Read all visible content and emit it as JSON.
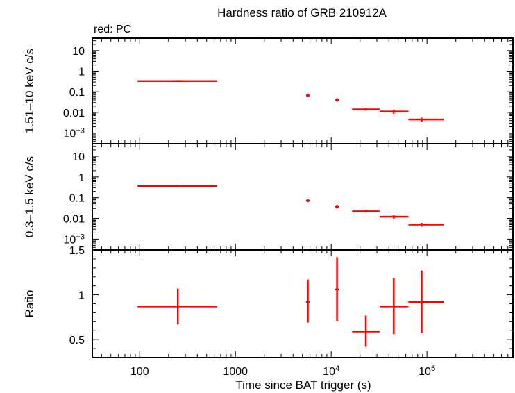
{
  "title": "Hardness ratio of GRB 210912A",
  "subtitle": "red: PC",
  "xlabel": "Time since BAT trigger (s)",
  "colors": {
    "series": "#ff0000",
    "axes": "#000000"
  },
  "x_tick_labels": [
    {
      "value": 100,
      "label": "100",
      "sup": ""
    },
    {
      "value": 1000,
      "label": "1000",
      "sup": ""
    },
    {
      "value": 10000,
      "label": "10",
      "sup": "4"
    },
    {
      "value": 100000,
      "label": "10",
      "sup": "5"
    }
  ],
  "chart_data": [
    {
      "type": "scatter",
      "panel": "hard",
      "ylabel": "1.51–10 keV c/s",
      "yscale": "log",
      "ylim": [
        0.0003,
        40
      ],
      "xscale": "log",
      "xlim": [
        32,
        790000
      ],
      "y_ticks": [
        {
          "value": 10,
          "label": "10",
          "sup": ""
        },
        {
          "value": 1,
          "label": "1",
          "sup": ""
        },
        {
          "value": 0.1,
          "label": "0.1",
          "sup": ""
        },
        {
          "value": 0.01,
          "label": "0.01",
          "sup": ""
        },
        {
          "value": 0.001,
          "label": "10",
          "sup": "−3"
        }
      ],
      "series": [
        {
          "points": [
            {
              "x": 250,
              "x_lo": 95,
              "x_hi": 640,
              "y": 0.33,
              "y_lo": 0.3,
              "y_hi": 0.37
            },
            {
              "x": 5700,
              "x_lo": 5450,
              "x_hi": 5950,
              "y": 0.066,
              "y_lo": 0.056,
              "y_hi": 0.078
            },
            {
              "x": 11500,
              "x_lo": 11000,
              "x_hi": 12000,
              "y": 0.04,
              "y_lo": 0.033,
              "y_hi": 0.048
            },
            {
              "x": 23000,
              "x_lo": 16500,
              "x_hi": 32000,
              "y": 0.014,
              "y_lo": 0.012,
              "y_hi": 0.016
            },
            {
              "x": 45000,
              "x_lo": 32000,
              "x_hi": 64000,
              "y": 0.011,
              "y_lo": 0.0085,
              "y_hi": 0.0135
            },
            {
              "x": 88000,
              "x_lo": 64000,
              "x_hi": 150000,
              "y": 0.0045,
              "y_lo": 0.0036,
              "y_hi": 0.0055
            }
          ]
        }
      ]
    },
    {
      "type": "scatter",
      "panel": "soft",
      "ylabel": "0.3–1.5 keV c/s",
      "yscale": "log",
      "ylim": [
        0.0003,
        40
      ],
      "xscale": "log",
      "xlim": [
        32,
        790000
      ],
      "y_ticks": [
        {
          "value": 10,
          "label": "10",
          "sup": ""
        },
        {
          "value": 1,
          "label": "1",
          "sup": ""
        },
        {
          "value": 0.1,
          "label": "0.1",
          "sup": ""
        },
        {
          "value": 0.01,
          "label": "0.01",
          "sup": ""
        },
        {
          "value": 0.001,
          "label": "10",
          "sup": "−3"
        }
      ],
      "series": [
        {
          "points": [
            {
              "x": 250,
              "x_lo": 95,
              "x_hi": 640,
              "y": 0.37,
              "y_lo": 0.33,
              "y_hi": 0.41
            },
            {
              "x": 5700,
              "x_lo": 5450,
              "x_hi": 5950,
              "y": 0.072,
              "y_lo": 0.061,
              "y_hi": 0.083
            },
            {
              "x": 11500,
              "x_lo": 11000,
              "x_hi": 12000,
              "y": 0.037,
              "y_lo": 0.03,
              "y_hi": 0.045
            },
            {
              "x": 23000,
              "x_lo": 16500,
              "x_hi": 32000,
              "y": 0.022,
              "y_lo": 0.019,
              "y_hi": 0.026
            },
            {
              "x": 45000,
              "x_lo": 32000,
              "x_hi": 64000,
              "y": 0.012,
              "y_lo": 0.0095,
              "y_hi": 0.0145
            },
            {
              "x": 88000,
              "x_lo": 64000,
              "x_hi": 150000,
              "y": 0.005,
              "y_lo": 0.004,
              "y_hi": 0.0061
            }
          ]
        }
      ]
    },
    {
      "type": "scatter",
      "panel": "ratio",
      "ylabel": "Ratio",
      "yscale": "linear",
      "ylim": [
        0.3,
        1.5
      ],
      "xscale": "log",
      "xlim": [
        32,
        790000
      ],
      "y_ticks": [
        {
          "value": 1.5,
          "label": "1.5",
          "sup": ""
        },
        {
          "value": 1,
          "label": "1",
          "sup": ""
        },
        {
          "value": 0.5,
          "label": "0.5",
          "sup": ""
        }
      ],
      "series": [
        {
          "points": [
            {
              "x": 250,
              "x_lo": 95,
              "x_hi": 640,
              "y": 0.87,
              "y_lo": 0.67,
              "y_hi": 1.07
            },
            {
              "x": 5700,
              "x_lo": 5450,
              "x_hi": 5950,
              "y": 0.92,
              "y_lo": 0.69,
              "y_hi": 1.17
            },
            {
              "x": 11500,
              "x_lo": 11000,
              "x_hi": 12000,
              "y": 1.06,
              "y_lo": 0.71,
              "y_hi": 1.42
            },
            {
              "x": 23000,
              "x_lo": 16500,
              "x_hi": 32000,
              "y": 0.59,
              "y_lo": 0.42,
              "y_hi": 0.77
            },
            {
              "x": 45000,
              "x_lo": 32000,
              "x_hi": 64000,
              "y": 0.87,
              "y_lo": 0.56,
              "y_hi": 1.19
            },
            {
              "x": 88000,
              "x_lo": 64000,
              "x_hi": 150000,
              "y": 0.92,
              "y_lo": 0.57,
              "y_hi": 1.27
            }
          ]
        }
      ]
    }
  ]
}
